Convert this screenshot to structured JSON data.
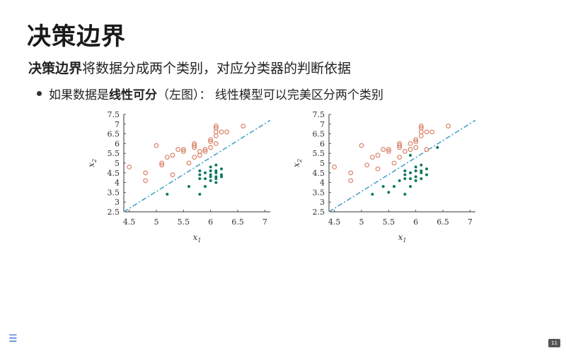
{
  "slide": {
    "title": "决策边界",
    "subtitle_bold": "决策边界",
    "subtitle_rest": "将数据分成两个类别，对应分类器的判断依据",
    "bullet_prefix": "如果数据是",
    "bullet_bold": "线性可分",
    "bullet_suffix": "（左图）：  线性模型可以完美区分两个类别",
    "page_number": "11",
    "menu_icon": "hamburger-menu-icon"
  },
  "colors": {
    "class_a": "#d98268",
    "class_b": "#0b7a5c",
    "boundary": "#4aa3c7"
  },
  "chart_data": [
    {
      "type": "scatter",
      "xlabel": "x",
      "xlabel_sub": "1",
      "ylabel": "x",
      "ylabel_sub": "2",
      "xlim": [
        4.4,
        7.1
      ],
      "ylim": [
        2.5,
        7.5
      ],
      "xticks": [
        "4.5",
        "5",
        "5.5",
        "6",
        "6.5",
        "7"
      ],
      "yticks": [
        "2.5",
        "3",
        "3.5",
        "4",
        "4.5",
        "5",
        "5.5",
        "6",
        "6.5",
        "7",
        "7.5"
      ],
      "boundary": [
        [
          4.4,
          2.5
        ],
        [
          7.1,
          7.2
        ]
      ],
      "series": [
        {
          "marker": "circle-open",
          "points": [
            [
              4.5,
              4.8
            ],
            [
              4.8,
              4.5
            ],
            [
              4.8,
              4.1
            ],
            [
              5.0,
              5.9
            ],
            [
              5.1,
              5.0
            ],
            [
              5.1,
              4.9
            ],
            [
              5.2,
              5.3
            ],
            [
              5.3,
              5.4
            ],
            [
              5.3,
              4.4
            ],
            [
              5.4,
              5.7
            ],
            [
              5.5,
              5.6
            ],
            [
              5.5,
              5.7
            ],
            [
              5.6,
              5.0
            ],
            [
              5.7,
              5.3
            ],
            [
              5.7,
              5.8
            ],
            [
              5.7,
              5.9
            ],
            [
              5.7,
              6.0
            ],
            [
              5.8,
              5.4
            ],
            [
              5.8,
              5.6
            ],
            [
              5.9,
              5.7
            ],
            [
              5.9,
              5.6
            ],
            [
              6.0,
              5.8
            ],
            [
              6.0,
              6.2
            ],
            [
              6.0,
              6.1
            ],
            [
              6.1,
              6.0
            ],
            [
              6.1,
              6.6
            ],
            [
              6.1,
              6.8
            ],
            [
              6.1,
              6.9
            ],
            [
              6.1,
              6.4
            ],
            [
              6.2,
              6.6
            ],
            [
              6.3,
              6.6
            ],
            [
              6.6,
              6.9
            ]
          ]
        },
        {
          "marker": "dot-filled",
          "points": [
            [
              5.2,
              3.4
            ],
            [
              5.6,
              3.8
            ],
            [
              5.8,
              3.4
            ],
            [
              5.8,
              4.4
            ],
            [
              5.8,
              4.6
            ],
            [
              5.8,
              4.2
            ],
            [
              5.9,
              4.5
            ],
            [
              5.9,
              4.2
            ],
            [
              5.9,
              3.8
            ],
            [
              6.0,
              4.6
            ],
            [
              6.0,
              4.3
            ],
            [
              6.0,
              4.8
            ],
            [
              6.0,
              4.1
            ],
            [
              6.0,
              4.4
            ],
            [
              6.1,
              4.6
            ],
            [
              6.1,
              4.2
            ],
            [
              6.1,
              4.3
            ],
            [
              6.1,
              4.5
            ],
            [
              6.1,
              4.9
            ],
            [
              6.1,
              4.0
            ],
            [
              6.2,
              4.7
            ],
            [
              6.2,
              4.4
            ],
            [
              6.2,
              4.3
            ]
          ]
        }
      ]
    },
    {
      "type": "scatter",
      "xlabel": "x",
      "xlabel_sub": "1",
      "ylabel": "x",
      "ylabel_sub": "2",
      "xlim": [
        4.4,
        7.1
      ],
      "ylim": [
        2.5,
        7.5
      ],
      "xticks": [
        "4.5",
        "5",
        "5.5",
        "6",
        "6.5",
        "7"
      ],
      "yticks": [
        "2.5",
        "3",
        "3.5",
        "4",
        "4.5",
        "5",
        "5.5",
        "6",
        "6.5",
        "7",
        "7.5"
      ],
      "boundary": [
        [
          4.4,
          2.5
        ],
        [
          7.1,
          7.2
        ]
      ],
      "series": [
        {
          "marker": "circle-open",
          "points": [
            [
              4.5,
              4.8
            ],
            [
              4.8,
              4.5
            ],
            [
              4.8,
              4.1
            ],
            [
              5.0,
              5.9
            ],
            [
              5.1,
              4.9
            ],
            [
              5.2,
              5.3
            ],
            [
              5.3,
              5.4
            ],
            [
              5.4,
              5.7
            ],
            [
              5.5,
              5.6
            ],
            [
              5.5,
              5.7
            ],
            [
              5.6,
              5.0
            ],
            [
              5.7,
              5.3
            ],
            [
              5.7,
              5.8
            ],
            [
              5.7,
              5.9
            ],
            [
              5.7,
              6.0
            ],
            [
              5.8,
              5.6
            ],
            [
              5.9,
              5.7
            ],
            [
              6.0,
              5.8
            ],
            [
              6.0,
              6.2
            ],
            [
              6.0,
              6.1
            ],
            [
              6.1,
              6.6
            ],
            [
              6.1,
              6.8
            ],
            [
              6.1,
              6.9
            ],
            [
              6.1,
              6.4
            ],
            [
              6.2,
              6.6
            ],
            [
              6.3,
              6.6
            ],
            [
              6.6,
              6.9
            ],
            [
              5.9,
              6.0
            ],
            [
              6.2,
              5.7
            ],
            [
              5.3,
              4.7
            ]
          ]
        },
        {
          "marker": "dot-filled",
          "points": [
            [
              5.2,
              3.4
            ],
            [
              5.4,
              3.8
            ],
            [
              5.5,
              3.5
            ],
            [
              5.6,
              3.8
            ],
            [
              5.8,
              3.4
            ],
            [
              5.8,
              4.4
            ],
            [
              5.8,
              4.6
            ],
            [
              5.8,
              4.2
            ],
            [
              5.9,
              4.5
            ],
            [
              5.9,
              4.2
            ],
            [
              5.9,
              3.8
            ],
            [
              5.9,
              5.4
            ],
            [
              6.0,
              4.6
            ],
            [
              6.0,
              4.3
            ],
            [
              6.0,
              4.8
            ],
            [
              6.0,
              4.1
            ],
            [
              6.1,
              4.6
            ],
            [
              6.1,
              4.2
            ],
            [
              6.1,
              4.5
            ],
            [
              6.1,
              4.9
            ],
            [
              6.2,
              4.7
            ],
            [
              6.2,
              4.4
            ],
            [
              6.4,
              5.8
            ],
            [
              5.7,
              4.1
            ]
          ]
        }
      ]
    }
  ]
}
